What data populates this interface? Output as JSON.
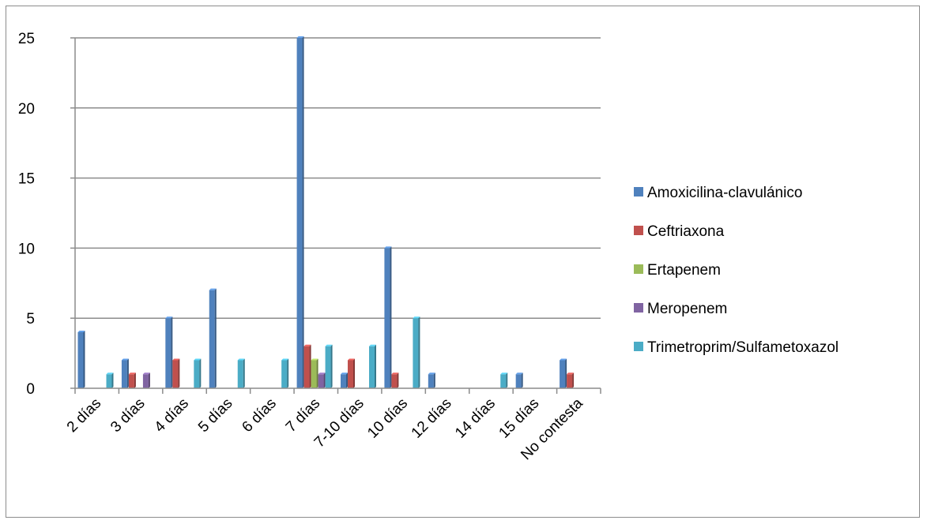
{
  "chart_data": {
    "type": "bar",
    "categories": [
      "2 días",
      "3 días",
      "4 días",
      "5 días",
      "6 días",
      "7 días",
      "7-10 días",
      "10 días",
      "12 días",
      "14 días",
      "15 días",
      "No contesta"
    ],
    "series": [
      {
        "name": "Amoxicilina-clavulánico",
        "color": "#4f81bd",
        "values": [
          4,
          2,
          5,
          7,
          0,
          25,
          1,
          10,
          1,
          0,
          1,
          2
        ]
      },
      {
        "name": "Ceftriaxona",
        "color": "#c0504d",
        "values": [
          0,
          1,
          2,
          0,
          0,
          3,
          2,
          1,
          0,
          0,
          0,
          1
        ]
      },
      {
        "name": "Ertapenem",
        "color": "#9bbb59",
        "values": [
          0,
          0,
          0,
          0,
          0,
          2,
          0,
          0,
          0,
          0,
          0,
          0
        ]
      },
      {
        "name": "Meropenem",
        "color": "#8064a2",
        "values": [
          0,
          1,
          0,
          0,
          0,
          1,
          0,
          0,
          0,
          0,
          0,
          0
        ]
      },
      {
        "name": "Trimetroprim/Sulfametoxazol",
        "color": "#4bacc6",
        "values": [
          1,
          0,
          2,
          2,
          2,
          3,
          3,
          5,
          0,
          1,
          0,
          0
        ]
      }
    ],
    "ylim": [
      0,
      25
    ],
    "yticks": [
      "0",
      "5",
      "10",
      "15",
      "20",
      "25"
    ],
    "grid": true,
    "legend_position": "right"
  }
}
